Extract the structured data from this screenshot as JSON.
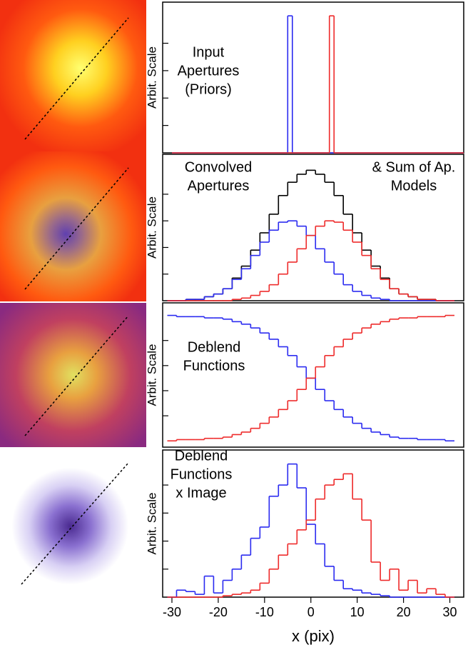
{
  "chart_data": [
    {
      "type": "step",
      "step": "post",
      "ylabel": "Arbit. Scale",
      "annotations": [
        [
          "Input",
          "Apertures",
          "(Priors)"
        ]
      ],
      "xlim": [
        -32,
        33
      ],
      "ylim": [
        0,
        1.1
      ],
      "yticks": [
        0.2,
        0.4,
        0.6,
        0.8
      ],
      "x": [
        -30,
        -5,
        -4,
        4,
        5,
        30
      ],
      "series": [
        {
          "color": "#2a2af0",
          "values": [
            0,
            1,
            0,
            0,
            0,
            0
          ]
        },
        {
          "color": "#ee2a2a",
          "values": [
            0,
            0,
            0,
            1,
            0,
            0
          ]
        }
      ]
    },
    {
      "type": "step",
      "step": "mid",
      "ylabel": "Arbit. Scale",
      "annotations": [
        [
          "Convolved",
          "Apertures"
        ],
        [
          "& Sum of Ap.",
          "Models"
        ]
      ],
      "xlim": [
        -32,
        33
      ],
      "ylim": [
        0,
        1.1
      ],
      "yticks": [
        0.2,
        0.4,
        0.6,
        0.8
      ],
      "x": [
        -30,
        -28,
        -26,
        -24,
        -22,
        -20,
        -18,
        -16,
        -14,
        -12,
        -10,
        -8,
        -6,
        -4,
        -2,
        0,
        2,
        4,
        6,
        8,
        10,
        12,
        14,
        16,
        18,
        20,
        22,
        24,
        26,
        28,
        30
      ],
      "series": [
        {
          "color": "#000000",
          "values": [
            0,
            0,
            0.01,
            0.01,
            0.03,
            0.05,
            0.09,
            0.17,
            0.26,
            0.38,
            0.51,
            0.65,
            0.79,
            0.89,
            0.95,
            0.98,
            0.95,
            0.89,
            0.79,
            0.65,
            0.51,
            0.38,
            0.26,
            0.17,
            0.09,
            0.05,
            0.03,
            0.01,
            0.01,
            0,
            0
          ]
        },
        {
          "color": "#2a2af0",
          "values": [
            0,
            0,
            0.01,
            0.01,
            0.03,
            0.05,
            0.09,
            0.16,
            0.24,
            0.34,
            0.44,
            0.53,
            0.59,
            0.6,
            0.56,
            0.49,
            0.39,
            0.29,
            0.2,
            0.12,
            0.07,
            0.04,
            0.02,
            0.01,
            0,
            0,
            0,
            0,
            0,
            0,
            0
          ]
        },
        {
          "color": "#ee2a2a",
          "values": [
            0,
            0,
            0,
            0,
            0,
            0,
            0,
            0.01,
            0.02,
            0.04,
            0.07,
            0.12,
            0.2,
            0.29,
            0.39,
            0.49,
            0.56,
            0.6,
            0.59,
            0.53,
            0.44,
            0.34,
            0.24,
            0.16,
            0.09,
            0.05,
            0.03,
            0.01,
            0.01,
            0,
            0
          ]
        }
      ]
    },
    {
      "type": "step",
      "step": "mid",
      "ylabel": "Arbit. Scale",
      "annotations": [
        [
          "Deblend",
          "Functions"
        ]
      ],
      "xlim": [
        -32,
        33
      ],
      "ylim": [
        -0.05,
        1.1
      ],
      "yticks": [
        0.2,
        0.4,
        0.6,
        0.8
      ],
      "x": [
        -30,
        -28,
        -26,
        -24,
        -22,
        -20,
        -18,
        -16,
        -14,
        -12,
        -10,
        -8,
        -6,
        -4,
        -2,
        0,
        2,
        4,
        6,
        8,
        10,
        12,
        14,
        16,
        18,
        20,
        22,
        24,
        26,
        28,
        30
      ],
      "series": [
        {
          "color": "#2a2af0",
          "values": [
            1,
            0.99,
            0.99,
            0.99,
            0.98,
            0.98,
            0.97,
            0.95,
            0.93,
            0.9,
            0.86,
            0.81,
            0.75,
            0.68,
            0.59,
            0.5,
            0.41,
            0.32,
            0.25,
            0.19,
            0.14,
            0.1,
            0.07,
            0.05,
            0.03,
            0.02,
            0.02,
            0.01,
            0.01,
            0.01,
            0
          ]
        },
        {
          "color": "#ee2a2a",
          "values": [
            0,
            0.01,
            0.01,
            0.01,
            0.02,
            0.02,
            0.03,
            0.05,
            0.07,
            0.1,
            0.14,
            0.19,
            0.25,
            0.32,
            0.41,
            0.5,
            0.59,
            0.68,
            0.75,
            0.81,
            0.86,
            0.9,
            0.93,
            0.95,
            0.97,
            0.98,
            0.98,
            0.99,
            0.99,
            0.99,
            1
          ]
        }
      ]
    },
    {
      "type": "step",
      "step": "mid",
      "ylabel": "Arbit. Scale",
      "xlabel": "x (pix)",
      "annotations": [
        [
          "Deblend",
          "Functions",
          "x Image"
        ]
      ],
      "xlim": [
        -32,
        33
      ],
      "ylim": [
        0,
        1.05
      ],
      "yticks": [
        0.2,
        0.4,
        0.6,
        0.8
      ],
      "xticks": [
        -30,
        -20,
        -10,
        0,
        10,
        20,
        30
      ],
      "x": [
        -30,
        -28,
        -26,
        -24,
        -22,
        -20,
        -18,
        -16,
        -14,
        -12,
        -10,
        -8,
        -6,
        -4,
        -2,
        0,
        2,
        4,
        6,
        8,
        10,
        12,
        14,
        16,
        18,
        20,
        22,
        24,
        26,
        28,
        30
      ],
      "series": [
        {
          "color": "#2a2af0",
          "values": [
            0,
            0.05,
            0.04,
            0.02,
            0.15,
            0.03,
            0.12,
            0.2,
            0.3,
            0.42,
            0.5,
            0.72,
            0.8,
            0.95,
            0.78,
            0.52,
            0.38,
            0.22,
            0.12,
            0.06,
            0.05,
            0.03,
            0.02,
            0.01,
            0,
            0,
            0,
            0,
            0,
            0,
            0
          ]
        },
        {
          "color": "#ee2a2a",
          "values": [
            0,
            0,
            0,
            0,
            0,
            0,
            0.01,
            0.02,
            0.03,
            0.05,
            0.1,
            0.2,
            0.3,
            0.38,
            0.48,
            0.55,
            0.7,
            0.8,
            0.84,
            0.88,
            0.7,
            0.55,
            0.25,
            0.12,
            0.2,
            0.05,
            0.12,
            0.03,
            0.06,
            0.02,
            0
          ]
        }
      ]
    }
  ]
}
